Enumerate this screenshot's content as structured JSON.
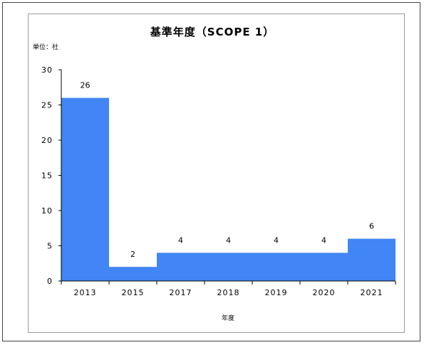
{
  "chart_data": {
    "type": "bar",
    "title": "基準年度（SCOPE 1）",
    "unit_label": "単位：社",
    "xlabel": "年度",
    "ylabel": "",
    "categories": [
      "2013",
      "2015",
      "2017",
      "2018",
      "2019",
      "2020",
      "2021"
    ],
    "values": [
      26,
      2,
      4,
      4,
      4,
      4,
      6
    ],
    "ylim": [
      0,
      30
    ],
    "yticks": [
      0,
      5,
      10,
      15,
      20,
      25,
      30
    ],
    "bar_color": "#4285f4",
    "gap_between_bars": false,
    "data_labels": true,
    "grid": false,
    "legend": "none"
  }
}
